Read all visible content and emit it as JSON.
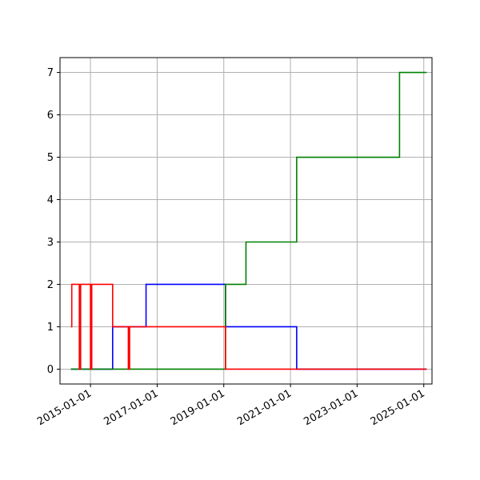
{
  "chart_data": {
    "type": "line",
    "title": "",
    "xlabel": "",
    "ylabel": "",
    "x_axis": "date",
    "xlim": [
      "2014-02-01",
      "2025-04-01"
    ],
    "ylim": [
      -0.35,
      7.35
    ],
    "grid": true,
    "x_ticks": [
      "2015-01-01",
      "2017-01-01",
      "2019-01-01",
      "2021-01-01",
      "2023-01-01",
      "2025-01-01"
    ],
    "y_ticks": [
      0,
      1,
      2,
      3,
      4,
      5,
      6,
      7
    ],
    "step": "post",
    "series": [
      {
        "color": "#0000ff",
        "x": [
          "2014-06-01",
          "2015-09-01",
          "2016-09-01",
          "2019-01-20",
          "2021-03-10",
          "2025-02-01"
        ],
        "values": [
          0,
          1,
          2,
          1,
          0,
          0
        ]
      },
      {
        "color": "#008000",
        "x": [
          "2014-06-01",
          "2019-01-20",
          "2019-09-01",
          "2021-03-10",
          "2024-04-10",
          "2025-02-01"
        ],
        "values": [
          0,
          2,
          3,
          5,
          7,
          7
        ]
      },
      {
        "color": "#ff0000",
        "x": [
          "2014-06-01",
          "2014-06-10",
          "2014-09-01",
          "2014-09-15",
          "2015-01-01",
          "2015-01-15",
          "2015-09-01",
          "2016-02-20",
          "2016-03-05",
          "2019-01-20",
          "2025-02-01"
        ],
        "values": [
          1,
          2,
          0,
          2,
          0,
          2,
          1,
          0,
          1,
          0,
          0
        ]
      }
    ]
  }
}
